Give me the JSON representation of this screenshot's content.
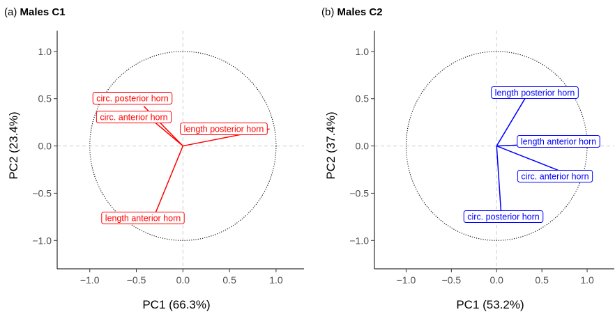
{
  "chart_data": [
    {
      "type": "scatter",
      "panel_tag": "(a)",
      "title": "Males C1",
      "xlabel": "PC1 (66.3%)",
      "ylabel": "PC2 (23.4%)",
      "xlim": [
        -1.35,
        1.3
      ],
      "ylim": [
        -1.3,
        1.22
      ],
      "xticks": [
        -1.0,
        -0.5,
        0.0,
        0.5,
        1.0
      ],
      "xtick_labels": [
        "−1.0",
        "−0.5",
        "0.0",
        "0.5",
        "1.0"
      ],
      "yticks": [
        -1.0,
        -0.5,
        0.0,
        0.5,
        1.0
      ],
      "ytick_labels": [
        "−1.0",
        "−0.5",
        "0.0",
        "0.5",
        "1.0"
      ],
      "color": "#ff0000",
      "unit_circle": true,
      "vectors": [
        {
          "label": "circ. posterior horn",
          "x": -0.42,
          "y": 0.42
        },
        {
          "label": "circ. anterior horn",
          "x": -0.35,
          "y": 0.29
        },
        {
          "label": "length posterior horn",
          "x": 0.93,
          "y": 0.18
        },
        {
          "label": "length anterior horn",
          "x": -0.32,
          "y": -0.77
        }
      ]
    },
    {
      "type": "scatter",
      "panel_tag": "(b)",
      "title": "Males C2",
      "xlabel": "PC1 (53.2%)",
      "ylabel": "PC2 (37.4%)",
      "xlim": [
        -1.35,
        1.3
      ],
      "ylim": [
        -1.3,
        1.22
      ],
      "xticks": [
        -1.0,
        -0.5,
        0.0,
        0.5,
        1.0
      ],
      "xtick_labels": [
        "−1.0",
        "−0.5",
        "0.0",
        "0.5",
        "1.0"
      ],
      "yticks": [
        -1.0,
        -0.5,
        0.0,
        0.5,
        1.0
      ],
      "ytick_labels": [
        "−1.0",
        "−0.5",
        "0.0",
        "0.5",
        "1.0"
      ],
      "color": "#0000ff",
      "unit_circle": true,
      "vectors": [
        {
          "label": "length posterior horn",
          "x": 0.35,
          "y": 0.56
        },
        {
          "label": "length anterior horn",
          "x": 1.02,
          "y": 0.04
        },
        {
          "label": "circ. anterior horn",
          "x": 0.82,
          "y": -0.31
        },
        {
          "label": "circ. posterior horn",
          "x": 0.05,
          "y": -0.72
        }
      ]
    }
  ]
}
